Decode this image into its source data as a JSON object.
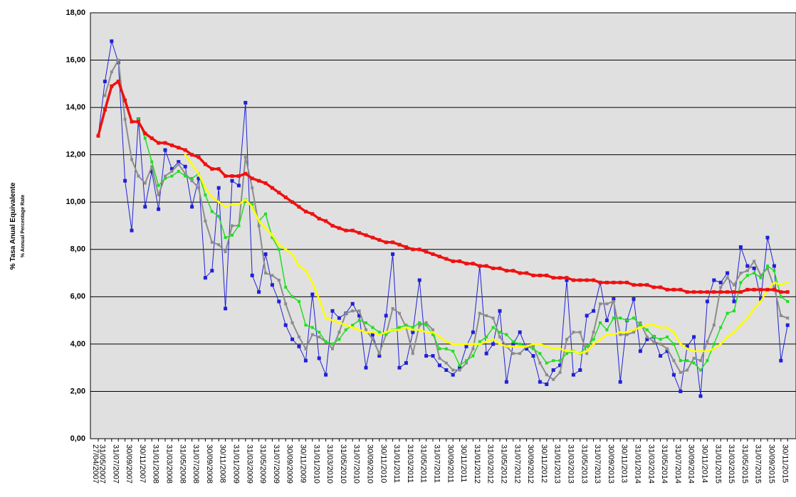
{
  "chart_data": {
    "type": "line",
    "y_label": "% Tasa Anual Equivalente",
    "y_sublabel": "% Annual Percentage Rate",
    "categories": [
      "27/04/2007",
      "31/05/2007",
      null,
      "31/07/2007",
      null,
      "30/09/2007",
      null,
      "30/11/2007",
      null,
      "31/01/2008",
      null,
      "31/03/2008",
      null,
      "31/05/2008",
      null,
      "31/07/2008",
      null,
      "30/09/2008",
      null,
      "30/11/2008",
      null,
      "31/01/2009",
      null,
      "31/03/2009",
      null,
      "31/05/2009",
      null,
      "31/07/2009",
      null,
      "30/09/2009",
      null,
      "30/11/2009",
      null,
      "31/01/2010",
      null,
      "31/03/2010",
      null,
      "31/05/2010",
      null,
      "31/07/2010",
      null,
      "30/09/2010",
      null,
      "30/11/2010",
      null,
      "31/01/2011",
      null,
      "31/03/2011",
      null,
      "31/05/2011",
      null,
      "31/07/2011",
      null,
      "30/09/2011",
      null,
      "30/11/2011",
      null,
      "31/01/2012",
      null,
      "31/03/2012",
      null,
      "31/05/2012",
      null,
      "31/07/2012",
      null,
      "30/09/2012",
      null,
      "30/11/2012",
      null,
      "31/01/2013",
      null,
      "31/03/2013",
      null,
      "31/05/2013",
      null,
      "31/07/2013",
      null,
      "30/09/2013",
      null,
      "30/11/2013",
      null,
      "31/01/2014",
      null,
      "31/03/2014",
      null,
      "31/05/2014",
      null,
      "31/07/2014",
      null,
      "30/09/2014",
      null,
      "30/11/2014",
      null,
      "31/01/2015",
      null,
      "31/03/2015",
      null,
      "31/05/2015",
      null,
      "31/07/2015",
      null,
      "30/09/2015",
      null,
      "30/11/2015"
    ],
    "series": [
      {
        "color": "#2020d8",
        "values": [
          12.8,
          15.1,
          16.8,
          15.9,
          10.9,
          8.8,
          13.5,
          9.8,
          11.3,
          9.7,
          12.2,
          11.4,
          11.7,
          11.5,
          9.8,
          11.0,
          6.8,
          7.1,
          10.6,
          5.5,
          10.9,
          10.7,
          14.2,
          6.9,
          6.2,
          7.8,
          6.5,
          5.8,
          4.8,
          4.2,
          3.9,
          3.3,
          6.1,
          3.4,
          2.7,
          5.4,
          5.1,
          5.3,
          5.7,
          5.2,
          3.0,
          4.4,
          3.5,
          5.2,
          7.8,
          3.0,
          3.2,
          4.5,
          6.7,
          3.5,
          3.5,
          3.1,
          2.9,
          2.7,
          3.0,
          3.9,
          4.5,
          7.3,
          3.6,
          4.0,
          5.4,
          2.4,
          4.0,
          4.5,
          3.8,
          3.5,
          2.4,
          2.3,
          2.9,
          3.1,
          6.7,
          2.7,
          2.9,
          5.2,
          5.4,
          6.6,
          5.0,
          5.9,
          2.4,
          5.0,
          5.9,
          3.7,
          4.2,
          4.3,
          3.5,
          3.7,
          2.7,
          2.0,
          3.9,
          4.3,
          1.8,
          5.8,
          6.7,
          6.6,
          7.0,
          5.8,
          8.1,
          7.3,
          7.2,
          5.9,
          8.5,
          7.3,
          3.3,
          4.8
        ]
      },
      {
        "color": "#8c8c8c",
        "values": [
          null,
          14.5,
          15.5,
          16.0,
          13.5,
          11.8,
          11.1,
          10.8,
          11.5,
          10.3,
          11.1,
          11.3,
          11.6,
          11.2,
          10.9,
          10.6,
          9.2,
          8.3,
          8.2,
          7.9,
          9.0,
          9.0,
          11.9,
          10.6,
          9.0,
          7.0,
          6.9,
          6.7,
          5.7,
          4.9,
          4.3,
          3.8,
          4.4,
          4.3,
          4.1,
          3.8,
          4.5,
          5.3,
          5.4,
          5.4,
          4.6,
          4.2,
          3.6,
          4.4,
          5.5,
          5.3,
          4.7,
          3.6,
          4.8,
          4.9,
          4.6,
          3.4,
          3.2,
          2.9,
          2.9,
          3.2,
          3.8,
          5.3,
          5.2,
          5.1,
          4.3,
          3.9,
          3.6,
          3.6,
          3.9,
          3.9,
          3.2,
          2.7,
          2.5,
          2.8,
          4.2,
          4.5,
          4.5,
          3.6,
          4.5,
          5.7,
          5.7,
          5.8,
          4.4,
          4.4,
          4.5,
          4.9,
          4.3,
          4.1,
          4.0,
          3.8,
          3.3,
          2.8,
          2.9,
          3.4,
          3.3,
          4.1,
          4.8,
          6.4,
          6.8,
          6.5,
          7.0,
          7.1,
          7.5,
          6.9,
          7.2,
          6.4,
          5.2,
          5.1
        ]
      },
      {
        "color": "#22dd22",
        "values": [
          null,
          null,
          null,
          null,
          null,
          null,
          13.5,
          12.7,
          11.7,
          10.7,
          11.0,
          11.1,
          11.3,
          11.1,
          11.0,
          11.2,
          10.3,
          9.6,
          9.4,
          8.5,
          8.6,
          9.0,
          10.1,
          9.9,
          9.2,
          9.5,
          8.5,
          8.0,
          6.4,
          6.0,
          5.8,
          4.8,
          4.7,
          4.5,
          4.1,
          4.0,
          4.2,
          4.6,
          4.8,
          5.0,
          4.9,
          4.7,
          4.5,
          4.4,
          4.6,
          4.7,
          4.8,
          4.7,
          4.9,
          4.8,
          4.4,
          3.8,
          3.8,
          3.7,
          3.1,
          3.3,
          3.5,
          4.1,
          4.3,
          4.7,
          4.5,
          4.4,
          4.1,
          4.0,
          3.9,
          3.8,
          3.6,
          3.2,
          3.3,
          3.3,
          3.6,
          3.7,
          3.6,
          3.9,
          4.2,
          4.9,
          4.6,
          5.1,
          5.1,
          5.0,
          5.1,
          4.8,
          4.6,
          4.3,
          4.2,
          4.3,
          4.0,
          3.3,
          3.3,
          3.2,
          2.9,
          3.3,
          4.0,
          4.7,
          5.3,
          5.4,
          6.6,
          6.9,
          7.0,
          6.8,
          7.3,
          7.1,
          6.0,
          5.8
        ]
      },
      {
        "color": "#ffff00",
        "values": [
          null,
          null,
          null,
          null,
          null,
          null,
          null,
          null,
          null,
          null,
          null,
          null,
          null,
          12.0,
          11.6,
          11.2,
          10.6,
          10.2,
          10.0,
          9.8,
          9.9,
          9.9,
          10.1,
          9.8,
          9.2,
          8.9,
          8.6,
          8.2,
          8.0,
          7.8,
          7.3,
          7.1,
          6.6,
          5.9,
          5.1,
          5.0,
          4.9,
          4.8,
          4.7,
          4.6,
          4.5,
          4.5,
          4.4,
          4.5,
          4.6,
          4.6,
          4.7,
          4.6,
          4.6,
          4.5,
          4.5,
          4.3,
          4.1,
          4.0,
          4.0,
          4.0,
          4.0,
          4.0,
          4.1,
          4.2,
          4.0,
          3.9,
          3.9,
          3.9,
          3.9,
          4.0,
          4.0,
          3.9,
          3.8,
          3.8,
          3.7,
          3.7,
          3.6,
          3.7,
          4.0,
          4.2,
          4.4,
          4.4,
          4.5,
          4.5,
          4.6,
          4.7,
          4.8,
          4.8,
          4.7,
          4.7,
          4.5,
          4.0,
          3.8,
          3.7,
          3.7,
          3.7,
          3.8,
          4.0,
          4.3,
          4.5,
          4.8,
          5.1,
          5.5,
          5.8,
          6.3,
          6.6,
          6.5,
          6.6
        ]
      },
      {
        "color": "#ee1111",
        "values": [
          12.8,
          13.9,
          14.9,
          15.1,
          14.3,
          13.4,
          13.4,
          12.9,
          12.7,
          12.5,
          12.5,
          12.4,
          12.3,
          12.2,
          12.0,
          11.9,
          11.6,
          11.4,
          11.4,
          11.1,
          11.1,
          11.1,
          11.2,
          11.0,
          10.9,
          10.8,
          10.6,
          10.4,
          10.2,
          10.0,
          9.8,
          9.6,
          9.5,
          9.3,
          9.2,
          9.0,
          8.9,
          8.8,
          8.8,
          8.7,
          8.6,
          8.5,
          8.4,
          8.3,
          8.3,
          8.2,
          8.1,
          8.0,
          8.0,
          7.9,
          7.8,
          7.7,
          7.6,
          7.5,
          7.5,
          7.4,
          7.4,
          7.3,
          7.3,
          7.2,
          7.2,
          7.1,
          7.1,
          7.0,
          7.0,
          6.9,
          6.9,
          6.9,
          6.8,
          6.8,
          6.8,
          6.7,
          6.7,
          6.7,
          6.7,
          6.6,
          6.6,
          6.6,
          6.6,
          6.6,
          6.5,
          6.5,
          6.5,
          6.4,
          6.4,
          6.3,
          6.3,
          6.3,
          6.2,
          6.2,
          6.2,
          6.2,
          6.2,
          6.2,
          6.2,
          6.2,
          6.2,
          6.3,
          6.3,
          6.3,
          6.3,
          6.3,
          6.2,
          6.2
        ]
      }
    ],
    "ylim": [
      0,
      18
    ],
    "yticks": [
      {
        "value": 0,
        "label": "0,00"
      },
      {
        "value": 2,
        "label": "2,00"
      },
      {
        "value": 4,
        "label": "4,00"
      },
      {
        "value": 6,
        "label": "6,00"
      },
      {
        "value": 8,
        "label": "8,00"
      },
      {
        "value": 10,
        "label": "10,00"
      },
      {
        "value": 12,
        "label": "12,00"
      },
      {
        "value": 14,
        "label": "14,00"
      },
      {
        "value": 16,
        "label": "16,00"
      },
      {
        "value": 18,
        "label": "18,00"
      }
    ],
    "grid": true,
    "plot_background": "#e0e0e0"
  }
}
